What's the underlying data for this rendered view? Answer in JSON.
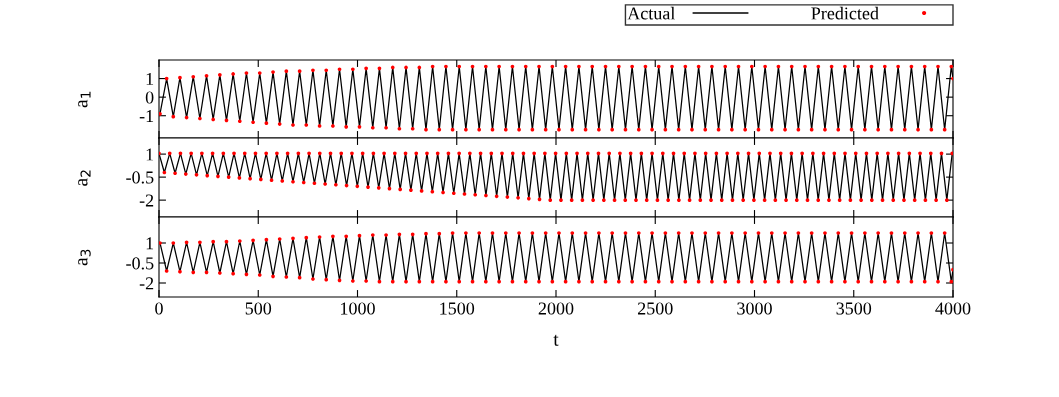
{
  "chart_data": [
    {
      "type": "line",
      "ylabel": "a$_{1}$",
      "xlim": [
        0,
        4000
      ],
      "xticks": [
        0,
        500,
        1000,
        1500,
        2000,
        2500,
        3000,
        3500,
        4000
      ],
      "ylim": [
        -2.2,
        2.0
      ],
      "yticks": [
        {
          "value": -1,
          "label": "-1"
        },
        0,
        1
      ],
      "tick_labels": "y",
      "legend": "top right",
      "x": [
        5,
        38.5,
        72,
        105.5,
        139,
        172.5,
        206,
        239.5,
        273,
        306.5,
        340,
        373.5,
        407,
        440.5,
        474,
        507.5,
        541,
        574.5,
        608,
        641.5,
        675,
        708.5,
        742,
        775.5,
        809,
        842.5,
        876,
        909.5,
        943,
        976.5,
        1010,
        1043.5,
        1077,
        1110.5,
        1144,
        1177.5,
        1211,
        1244.5,
        1278,
        1311.5,
        1345,
        1378.5,
        1412,
        1445.5,
        1479,
        1512.5,
        1546,
        1579.5,
        1613,
        1646.5,
        1680,
        1713.5,
        1747,
        1780.5,
        1814,
        1847.5,
        1881,
        1914.5,
        1948,
        1981.5,
        2015,
        2048.5,
        2082,
        2115.5,
        2149,
        2182.5,
        2216,
        2249.5,
        2283,
        2316.5,
        2350,
        2383.5,
        2417,
        2450.5,
        2484,
        2517.5,
        2551,
        2584.5,
        2618,
        2651.5,
        2685,
        2718.5,
        2752,
        2785.5,
        2819,
        2852.5,
        2886,
        2919.5,
        2953,
        2986.5,
        3020,
        3053.5,
        3087,
        3120.5,
        3154,
        3187.5,
        3221,
        3254.5,
        3288,
        3321.5,
        3355,
        3388.5,
        3422,
        3455.5,
        3489,
        3522.5,
        3556,
        3589.5,
        3623,
        3656.5,
        3690,
        3723.5,
        3757,
        3790.5,
        3824,
        3857.5,
        3891,
        3924.5,
        3958,
        3991.5,
        4000
      ],
      "series": [
        {
          "name": "Actual",
          "color": "#000000",
          "line_style": "solid",
          "marker": "none",
          "values": [
            -0.9,
            1.0,
            -1.05,
            1.05,
            -1.1,
            1.1,
            -1.15,
            1.15,
            -1.2,
            1.2,
            -1.25,
            1.25,
            -1.3,
            1.3,
            -1.35,
            1.3,
            -1.4,
            1.35,
            -1.45,
            1.4,
            -1.5,
            1.4,
            -1.5,
            1.45,
            -1.55,
            1.45,
            -1.55,
            1.5,
            -1.6,
            1.5,
            -1.6,
            1.55,
            -1.65,
            1.55,
            -1.65,
            1.6,
            -1.7,
            1.6,
            -1.7,
            1.6,
            -1.75,
            1.65,
            -1.75,
            1.65,
            -1.75,
            1.65,
            -1.75,
            1.65,
            -1.75,
            1.65,
            -1.75,
            1.65,
            -1.75,
            1.65,
            -1.75,
            1.65,
            -1.75,
            1.65,
            -1.75,
            1.65,
            -1.75,
            1.65,
            -1.75,
            1.65,
            -1.75,
            1.65,
            -1.75,
            1.65,
            -1.75,
            1.65,
            -1.75,
            1.65,
            -1.75,
            1.65,
            -1.75,
            1.65,
            -1.75,
            1.65,
            -1.75,
            1.65,
            -1.75,
            1.65,
            -1.75,
            1.65,
            -1.75,
            1.65,
            -1.75,
            1.65,
            -1.75,
            1.65,
            -1.75,
            1.65,
            -1.75,
            1.65,
            -1.75,
            1.65,
            -1.75,
            1.65,
            -1.75,
            1.65,
            -1.75,
            1.65,
            -1.75,
            1.65,
            -1.75,
            1.65,
            -1.75,
            1.65,
            -1.75,
            1.65,
            -1.75,
            1.65,
            -1.75,
            1.65,
            -1.75,
            1.65,
            -1.75,
            1.65,
            -1.75,
            1.65,
            1.0
          ]
        },
        {
          "name": "Predicted",
          "type": "scatter",
          "color": "#ff0000",
          "marker": "circle",
          "values": [
            -0.9,
            1.0,
            -1.05,
            1.05,
            -1.1,
            1.1,
            -1.15,
            1.15,
            -1.2,
            1.2,
            -1.25,
            1.25,
            -1.3,
            1.3,
            -1.35,
            1.3,
            -1.4,
            1.35,
            -1.45,
            1.4,
            -1.5,
            1.4,
            -1.5,
            1.45,
            -1.55,
            1.45,
            -1.55,
            1.5,
            -1.6,
            1.5,
            -1.6,
            1.55,
            -1.65,
            1.55,
            -1.65,
            1.6,
            -1.7,
            1.6,
            -1.7,
            1.6,
            -1.75,
            1.65,
            -1.75,
            1.65,
            -1.75,
            1.65,
            -1.75,
            1.65,
            -1.75,
            1.65,
            -1.75,
            1.65,
            -1.75,
            1.65,
            -1.75,
            1.65,
            -1.75,
            1.65,
            -1.75,
            1.65,
            -1.75,
            1.65,
            -1.75,
            1.65,
            -1.75,
            1.65,
            -1.75,
            1.65,
            -1.75,
            1.65,
            -1.75,
            1.65,
            -1.75,
            1.65,
            -1.75,
            1.65,
            -1.75,
            1.65,
            -1.75,
            1.65,
            -1.75,
            1.65,
            -1.75,
            1.65,
            -1.75,
            1.65,
            -1.75,
            1.65,
            -1.75,
            1.65,
            -1.75,
            1.65,
            -1.75,
            1.65,
            -1.75,
            1.65,
            -1.75,
            1.65,
            -1.75,
            1.65,
            -1.75,
            1.65,
            -1.75,
            1.65,
            -1.75,
            1.65,
            -1.75,
            1.65,
            -1.75,
            1.65,
            -1.75,
            1.65,
            -1.75,
            1.65,
            -1.75,
            1.65,
            -1.75,
            1.65,
            -1.75,
            1.65,
            1.0
          ]
        }
      ]
    },
    {
      "type": "line",
      "ylabel": "a$_{2}$",
      "xlim": [
        0,
        4000
      ],
      "xticks": [
        0,
        500,
        1000,
        1500,
        2000,
        2500,
        3000,
        3500,
        4000
      ],
      "ylim": [
        -3.1,
        2.05
      ],
      "yticks": [
        {
          "value": -2,
          "label": "-2"
        },
        {
          "value": -0.5,
          "label": "-0.5"
        },
        1
      ],
      "tick_labels": "y",
      "x": [
        0,
        27,
        54,
        81,
        108,
        135,
        162,
        189,
        216,
        243,
        270,
        297,
        324,
        351,
        378,
        405,
        432,
        459,
        486,
        513,
        540,
        567,
        594,
        621,
        648,
        675,
        702,
        729,
        756,
        783,
        810,
        837,
        864,
        891,
        918,
        945,
        972,
        999,
        1026,
        1053,
        1080,
        1107,
        1134,
        1161,
        1188,
        1215,
        1242,
        1269,
        1296,
        1323,
        1350,
        1377,
        1404,
        1431,
        1458,
        1485,
        1512,
        1539,
        1566,
        1593,
        1620,
        1647,
        1674,
        1701,
        1728,
        1755,
        1782,
        1809,
        1836,
        1863,
        1890,
        1917,
        1944,
        1971,
        1998,
        2025,
        2052,
        2079,
        2106,
        2133,
        2160,
        2187,
        2214,
        2241,
        2268,
        2295,
        2322,
        2349,
        2376,
        2403,
        2430,
        2457,
        2484,
        2511,
        2538,
        2565,
        2592,
        2619,
        2646,
        2673,
        2700,
        2727,
        2754,
        2781,
        2808,
        2835,
        2862,
        2889,
        2916,
        2943,
        2970,
        2997,
        3024,
        3051,
        3078,
        3105,
        3132,
        3159,
        3186,
        3213,
        3240,
        3267,
        3294,
        3321,
        3348,
        3375,
        3402,
        3429,
        3456,
        3483,
        3510,
        3537,
        3564,
        3591,
        3618,
        3645,
        3672,
        3699,
        3726,
        3753,
        3780,
        3807,
        3834,
        3861,
        3888,
        3915,
        3942,
        3969,
        3996
      ],
      "series": [
        {
          "color": "#000000",
          "line_style": "solid",
          "marker": "none",
          "values": [
            1.05,
            -0.2,
            1.05,
            -0.25,
            1.05,
            -0.3,
            1.05,
            -0.35,
            1.05,
            -0.4,
            1.05,
            -0.45,
            1.05,
            -0.5,
            1.05,
            -0.55,
            1.05,
            -0.6,
            1.05,
            -0.65,
            1.05,
            -0.7,
            1.05,
            -0.75,
            1.05,
            -0.8,
            1.05,
            -0.85,
            1.05,
            -0.9,
            1.05,
            -0.95,
            1.05,
            -1.0,
            1.05,
            -1.05,
            1.05,
            -1.1,
            1.05,
            -1.15,
            1.05,
            -1.2,
            1.05,
            -1.25,
            1.05,
            -1.3,
            1.05,
            -1.35,
            1.05,
            -1.4,
            1.05,
            -1.45,
            1.05,
            -1.5,
            1.05,
            -1.55,
            1.05,
            -1.6,
            1.05,
            -1.65,
            1.05,
            -1.7,
            1.05,
            -1.75,
            1.05,
            -1.8,
            1.05,
            -1.85,
            1.05,
            -1.9,
            1.05,
            -1.95,
            1.05,
            -2.0,
            1.05,
            -2.0,
            1.05,
            -2.0,
            1.05,
            -2.0,
            1.05,
            -2.0,
            1.05,
            -2.0,
            1.05,
            -2.0,
            1.05,
            -2.0,
            1.05,
            -2.0,
            1.05,
            -2.0,
            1.05,
            -2.0,
            1.05,
            -2.0,
            1.05,
            -2.0,
            1.05,
            -2.0,
            1.05,
            -2.0,
            1.05,
            -2.0,
            1.05,
            -2.0,
            1.05,
            -2.0,
            1.05,
            -2.0,
            1.05,
            -2.0,
            1.05,
            -2.0,
            1.05,
            -2.0,
            1.05,
            -2.0,
            1.05,
            -2.0,
            1.05,
            -2.0,
            1.05,
            -2.0,
            1.05,
            -2.0,
            1.05,
            -2.0,
            1.05,
            -2.0,
            1.05,
            -2.0,
            1.05,
            -2.0,
            1.05,
            -2.0,
            1.05,
            -2.0,
            1.05,
            -2.0,
            1.05,
            -2.0,
            1.05,
            -2.0,
            1.05,
            -2.0,
            1.05,
            -2.0,
            1.05
          ]
        },
        {
          "type": "scatter",
          "color": "#ff0000",
          "marker": "circle",
          "values": [
            1.05,
            -0.2,
            1.05,
            -0.25,
            1.05,
            -0.3,
            1.05,
            -0.35,
            1.05,
            -0.4,
            1.05,
            -0.45,
            1.05,
            -0.5,
            1.05,
            -0.55,
            1.05,
            -0.6,
            1.05,
            -0.65,
            1.05,
            -0.7,
            1.05,
            -0.75,
            1.05,
            -0.8,
            1.05,
            -0.85,
            1.05,
            -0.9,
            1.05,
            -0.95,
            1.05,
            -1.0,
            1.05,
            -1.05,
            1.05,
            -1.1,
            1.05,
            -1.15,
            1.05,
            -1.2,
            1.05,
            -1.25,
            1.05,
            -1.3,
            1.05,
            -1.35,
            1.05,
            -1.4,
            1.05,
            -1.45,
            1.05,
            -1.5,
            1.05,
            -1.55,
            1.05,
            -1.6,
            1.05,
            -1.65,
            1.05,
            -1.7,
            1.05,
            -1.75,
            1.05,
            -1.8,
            1.05,
            -1.85,
            1.05,
            -1.9,
            1.05,
            -1.95,
            1.05,
            -2.0,
            1.05,
            -2.0,
            1.05,
            -2.0,
            1.05,
            -2.0,
            1.05,
            -2.0,
            1.05,
            -2.0,
            1.05,
            -2.0,
            1.05,
            -2.0,
            1.05,
            -2.0,
            1.05,
            -2.0,
            1.05,
            -2.0,
            1.05,
            -2.0,
            1.05,
            -2.0,
            1.05,
            -2.0,
            1.05,
            -2.0,
            1.05,
            -2.0,
            1.05,
            -2.0,
            1.05,
            -2.0,
            1.05,
            -2.0,
            1.05,
            -2.0,
            1.05,
            -2.0,
            1.05,
            -2.0,
            1.05,
            -2.0,
            1.05,
            -2.0,
            1.05,
            -2.0,
            1.05,
            -2.0,
            1.05,
            -2.0,
            1.05,
            -2.0,
            1.05,
            -2.0,
            1.05,
            -2.0,
            1.05,
            -2.0,
            1.05,
            -2.0,
            1.05,
            -2.0,
            1.05,
            -2.0,
            1.05,
            -2.0,
            1.05,
            -2.0,
            1.05,
            -2.0,
            1.05,
            -2.0,
            1.05
          ]
        }
      ]
    },
    {
      "type": "line",
      "ylabel": "a$_{3}$",
      "xlabel": "t",
      "xlim": [
        0,
        4000
      ],
      "xticks": [
        0,
        500,
        1000,
        1500,
        2000,
        2500,
        3000,
        3500,
        4000
      ],
      "ylim": [
        -3.05,
        2.95
      ],
      "yticks": [
        {
          "value": -2,
          "label": "-2"
        },
        {
          "value": -0.5,
          "label": "-0.5"
        },
        1
      ],
      "x": [
        5,
        38.5,
        72,
        105.5,
        139,
        172.5,
        206,
        239.5,
        273,
        306.5,
        340,
        373.5,
        407,
        440.5,
        474,
        507.5,
        541,
        574.5,
        608,
        641.5,
        675,
        708.5,
        742,
        775.5,
        809,
        842.5,
        876,
        909.5,
        943,
        976.5,
        1010,
        1043.5,
        1077,
        1110.5,
        1144,
        1177.5,
        1211,
        1244.5,
        1278,
        1311.5,
        1345,
        1378.5,
        1412,
        1445.5,
        1479,
        1512.5,
        1546,
        1579.5,
        1613,
        1646.5,
        1680,
        1713.5,
        1747,
        1780.5,
        1814,
        1847.5,
        1881,
        1914.5,
        1948,
        1981.5,
        2015,
        2048.5,
        2082,
        2115.5,
        2149,
        2182.5,
        2216,
        2249.5,
        2283,
        2316.5,
        2350,
        2383.5,
        2417,
        2450.5,
        2484,
        2517.5,
        2551,
        2584.5,
        2618,
        2651.5,
        2685,
        2718.5,
        2752,
        2785.5,
        2819,
        2852.5,
        2886,
        2919.5,
        2953,
        2986.5,
        3020,
        3053.5,
        3087,
        3120.5,
        3154,
        3187.5,
        3221,
        3254.5,
        3288,
        3321.5,
        3355,
        3388.5,
        3422,
        3455.5,
        3489,
        3522.5,
        3556,
        3589.5,
        3623,
        3656.5,
        3690,
        3723.5,
        3757,
        3790.5,
        3824,
        3857.5,
        3891,
        3924.5,
        3958,
        3991.5,
        4000
      ],
      "series": [
        {
          "color": "#000000",
          "line_style": "solid",
          "marker": "none",
          "values": [
            1.0,
            -1.1,
            1.0,
            -1.15,
            1.05,
            -1.2,
            1.05,
            -1.2,
            1.1,
            -1.25,
            1.1,
            -1.3,
            1.15,
            -1.35,
            1.2,
            -1.4,
            1.25,
            -1.5,
            1.3,
            -1.55,
            1.35,
            -1.6,
            1.4,
            -1.7,
            1.45,
            -1.75,
            1.5,
            -1.8,
            1.5,
            -1.85,
            1.55,
            -1.85,
            1.6,
            -1.9,
            1.6,
            -1.9,
            1.65,
            -1.9,
            1.65,
            -1.9,
            1.7,
            -1.9,
            1.7,
            -1.9,
            1.75,
            -1.9,
            1.75,
            -1.9,
            1.75,
            -1.9,
            1.75,
            -1.9,
            1.75,
            -1.9,
            1.75,
            -1.9,
            1.75,
            -1.9,
            1.75,
            -1.9,
            1.75,
            -1.9,
            1.75,
            -1.9,
            1.75,
            -1.9,
            1.75,
            -1.9,
            1.75,
            -1.9,
            1.75,
            -1.9,
            1.75,
            -1.9,
            1.75,
            -1.9,
            1.75,
            -1.9,
            1.75,
            -1.9,
            1.75,
            -1.9,
            1.75,
            -1.9,
            1.75,
            -1.9,
            1.75,
            -1.9,
            1.75,
            -1.9,
            1.75,
            -1.9,
            1.75,
            -1.9,
            1.75,
            -1.9,
            1.75,
            -1.9,
            1.75,
            -1.9,
            1.75,
            -1.9,
            1.75,
            -1.9,
            1.75,
            -1.9,
            1.75,
            -1.9,
            1.75,
            -1.9,
            1.75,
            -1.9,
            1.75,
            -1.9,
            1.75,
            -1.9,
            1.75,
            -1.9,
            1.75,
            -1.9,
            -1.0
          ]
        },
        {
          "type": "scatter",
          "color": "#ff0000",
          "marker": "circle",
          "values": [
            1.0,
            -1.1,
            1.0,
            -1.15,
            1.05,
            -1.2,
            1.05,
            -1.2,
            1.1,
            -1.25,
            1.1,
            -1.3,
            1.15,
            -1.35,
            1.2,
            -1.4,
            1.25,
            -1.5,
            1.3,
            -1.55,
            1.35,
            -1.6,
            1.4,
            -1.7,
            1.45,
            -1.75,
            1.5,
            -1.8,
            1.5,
            -1.85,
            1.55,
            -1.85,
            1.6,
            -1.9,
            1.6,
            -1.9,
            1.65,
            -1.9,
            1.65,
            -1.9,
            1.7,
            -1.9,
            1.7,
            -1.9,
            1.75,
            -1.9,
            1.75,
            -1.9,
            1.75,
            -1.9,
            1.75,
            -1.9,
            1.75,
            -1.9,
            1.75,
            -1.9,
            1.75,
            -1.9,
            1.75,
            -1.9,
            1.75,
            -1.9,
            1.75,
            -1.9,
            1.75,
            -1.9,
            1.75,
            -1.9,
            1.75,
            -1.9,
            1.75,
            -1.9,
            1.75,
            -1.9,
            1.75,
            -1.9,
            1.75,
            -1.9,
            1.75,
            -1.9,
            1.75,
            -1.9,
            1.75,
            -1.9,
            1.75,
            -1.9,
            1.75,
            -1.9,
            1.75,
            -1.9,
            1.75,
            -1.9,
            1.75,
            -1.9,
            1.75,
            -1.9,
            1.75,
            -1.9,
            1.75,
            -1.9,
            1.75,
            -1.9,
            1.75,
            -1.9,
            1.75,
            -1.9,
            1.75,
            -1.9,
            1.75,
            -1.9,
            1.75,
            -1.9,
            1.75,
            -1.9,
            1.75,
            -1.9,
            1.75,
            -1.9,
            1.75,
            -1.9,
            -1.0
          ]
        }
      ]
    }
  ]
}
